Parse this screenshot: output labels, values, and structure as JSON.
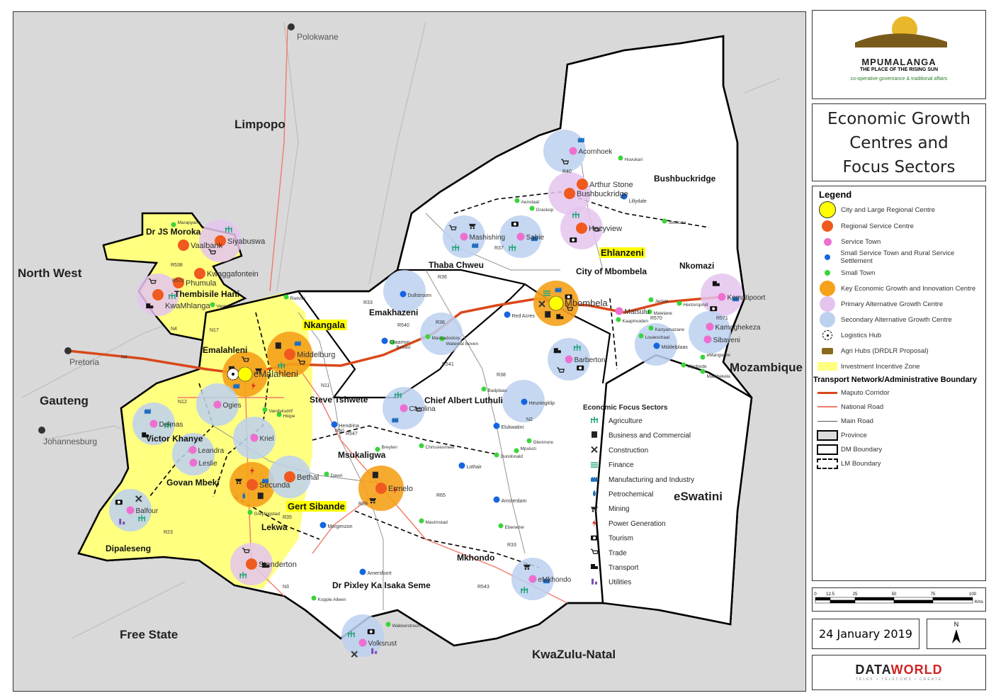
{
  "header": {
    "logo_text": "MPUMALANGA",
    "logo_tagline": "THE PLACE OF THE RISING SUN",
    "dept": "co-operative governance & traditional affairs",
    "title_lines": [
      "Economic Growth",
      "Centres and",
      "Focus Sectors"
    ]
  },
  "legend": {
    "heading": "Legend",
    "items": [
      {
        "label": "City and Large Regional Centre",
        "color": "#ffff00",
        "kind": "big"
      },
      {
        "label": "Regional Service Centre",
        "color": "#f05a1e",
        "kind": "mid"
      },
      {
        "label": "Service Town",
        "color": "#ee6fd0",
        "kind": "small"
      },
      {
        "label": "Small Service Town and Rural Service Settlement",
        "color": "#1565e0",
        "kind": "tiny"
      },
      {
        "label": "Small Town",
        "color": "#3ad43a",
        "kind": "tiny"
      },
      {
        "label": "Key Economic Growth and Innovation Centre",
        "color": "#f5a11a",
        "kind": "big"
      },
      {
        "label": "Primary Alternative Growth Centre",
        "color": "#e4c4ef",
        "kind": "big"
      },
      {
        "label": "Secondary Alternative Growth Centre",
        "color": "#bcd0f0",
        "kind": "big"
      },
      {
        "label": "Logistics Hub",
        "color": "#000000",
        "kind": "hub"
      },
      {
        "label": "Agri Hubs (DRDLR Proposal)",
        "color": "#8a6a1e",
        "kind": "agri"
      },
      {
        "label": "Investment Incentive Zone",
        "color": "#ffff80",
        "kind": "zone"
      }
    ],
    "transport_heading": "Transport Network/Administrative Boundary",
    "lines": [
      {
        "label": "Maputo Corridor",
        "color": "#d9481a",
        "kind": "thick"
      },
      {
        "label": "National Road",
        "color": "#f07a6a",
        "kind": "thin"
      },
      {
        "label": "Main Road",
        "color": "#555555",
        "kind": "hair"
      },
      {
        "label": "Province",
        "color": "#dddddd",
        "kind": "box"
      },
      {
        "label": "DM Boundary",
        "color": "#ffffff",
        "kind": "box"
      },
      {
        "label": "LM Boundary",
        "color": "#ffffff",
        "kind": "dash"
      }
    ]
  },
  "sectors": {
    "heading": "Economic Focus Sectors",
    "items": [
      {
        "label": "Agriculture",
        "icon": "agriculture-icon",
        "glyph": "ψ",
        "color": "#1fa37a"
      },
      {
        "label": "Business and Commercial",
        "icon": "business-icon",
        "glyph": "▥",
        "color": "#222"
      },
      {
        "label": "Construction",
        "icon": "construction-icon",
        "glyph": "✕",
        "color": "#333"
      },
      {
        "label": "Finance",
        "icon": "finance-icon",
        "glyph": "≋",
        "color": "#1fa37a"
      },
      {
        "label": "Manufacturing and Industry",
        "icon": "factory-icon",
        "glyph": "▙",
        "color": "#1f6fc0"
      },
      {
        "label": "Petrochemical",
        "icon": "drop-icon",
        "glyph": "●",
        "color": "#1f6fc0"
      },
      {
        "label": "Mining",
        "icon": "mining-cart-icon",
        "glyph": "◛",
        "color": "#222"
      },
      {
        "label": "Power Generation",
        "icon": "lightning-icon",
        "glyph": "ϟ",
        "color": "#e02020"
      },
      {
        "label": "Tourism",
        "icon": "camera-icon",
        "glyph": "◙",
        "color": "#111"
      },
      {
        "label": "Trade",
        "icon": "cart-icon",
        "glyph": "⊻",
        "color": "#222"
      },
      {
        "label": "Transport",
        "icon": "truck-icon",
        "glyph": "▆",
        "color": "#111"
      },
      {
        "label": "Utilities",
        "icon": "utilities-icon",
        "glyph": "▟",
        "color": "#7b4fb0"
      }
    ]
  },
  "scale_bar": {
    "ticks": [
      "0",
      "12.5",
      "25",
      "50",
      "75",
      "100"
    ],
    "unit": "Kms"
  },
  "date": "24 January 2019",
  "north_arrow": "N",
  "credit": {
    "part1": "DATA",
    "part2": "WORLD",
    "tagline": "TELEK • TELECOMS • CREATE"
  },
  "map": {
    "regions": [
      "Limpopo",
      "North West",
      "Gauteng",
      "Free State",
      "KwaZulu-Natal",
      "Mozambique",
      "eSwatini"
    ],
    "cities": [
      "Polokwane",
      "Pretoria",
      "Johannesburg"
    ],
    "districts": [
      "Nkangala",
      "Gert Sibande",
      "Ehlanzeni"
    ],
    "municipalities": [
      "Dr JS Moroka",
      "Thembisile Hani",
      "Emalahleni",
      "Steve Tshwete",
      "Victor Khanye",
      "Govan Mbeki",
      "Dipaleseng",
      "Lekwa",
      "Msukaligwa",
      "Chief Albert Luthuli",
      "Emakhazeni",
      "Thaba Chweu",
      "City of Mbombela",
      "Bushbuckridge",
      "Nkomazi",
      "Mkhondo",
      "Dr Pixley Ka Isaka Seme"
    ],
    "roads": [
      "N4",
      "N4",
      "N12",
      "N11",
      "N17",
      "N2",
      "N3",
      "R40",
      "R538",
      "R573",
      "R33",
      "R36",
      "R37",
      "R540",
      "R541",
      "R36",
      "R38",
      "R35",
      "R50",
      "R547",
      "R39",
      "R65",
      "R33",
      "R543",
      "R23",
      "R570",
      "R571"
    ],
    "places": [
      {
        "name": "eMalahleni",
        "type": "city"
      },
      {
        "name": "Mbombela",
        "type": "city"
      },
      {
        "name": "Siyabuswa",
        "type": "regional"
      },
      {
        "name": "Vaalbank",
        "type": "regional"
      },
      {
        "name": "Kwaggafontein",
        "type": "regional"
      },
      {
        "name": "Phumula",
        "type": "regional"
      },
      {
        "name": "KwaMhlanga",
        "type": "regional"
      },
      {
        "name": "Middelburg",
        "type": "regional"
      },
      {
        "name": "Secunda",
        "type": "regional"
      },
      {
        "name": "Bethal",
        "type": "regional"
      },
      {
        "name": "Ermelo",
        "type": "regional"
      },
      {
        "name": "Standerton",
        "type": "regional"
      },
      {
        "name": "Arthur Stone",
        "type": "regional"
      },
      {
        "name": "Bushbuckridge",
        "type": "regional"
      },
      {
        "name": "Hazyview",
        "type": "regional"
      },
      {
        "name": "Ogies",
        "type": "service"
      },
      {
        "name": "Kriel",
        "type": "service"
      },
      {
        "name": "Delmas",
        "type": "service"
      },
      {
        "name": "Leslie",
        "type": "service"
      },
      {
        "name": "Leandra",
        "type": "service"
      },
      {
        "name": "Balfour",
        "type": "service"
      },
      {
        "name": "Carolina",
        "type": "service"
      },
      {
        "name": "Mashishing",
        "type": "service"
      },
      {
        "name": "Sabie",
        "type": "service"
      },
      {
        "name": "Acornhoek",
        "type": "service"
      },
      {
        "name": "Barberton",
        "type": "service"
      },
      {
        "name": "Matsulu",
        "type": "service"
      },
      {
        "name": "Kamaghekeza",
        "type": "service"
      },
      {
        "name": "Sibayeni",
        "type": "service"
      },
      {
        "name": "eMkhondo",
        "type": "service"
      },
      {
        "name": "Volksrust",
        "type": "service"
      },
      {
        "name": "Komatipoort",
        "type": "service"
      },
      {
        "name": "Dullstroom",
        "type": "rural"
      },
      {
        "name": "Red Acres",
        "type": "rural"
      },
      {
        "name": "Lillydale",
        "type": "rural"
      },
      {
        "name": "Middelplaas",
        "type": "rural"
      },
      {
        "name": "Hendrina",
        "type": "rural"
      },
      {
        "name": "Morgenzon",
        "type": "rural"
      },
      {
        "name": "Amersfoort",
        "type": "rural"
      },
      {
        "name": "Lothair",
        "type": "rural"
      },
      {
        "name": "Amsterdam",
        "type": "rural"
      },
      {
        "name": "Heuningklip",
        "type": "rural"
      },
      {
        "name": "Elukwatini",
        "type": "rural"
      },
      {
        "name": "Cliaamyn",
        "type": "rural"
      },
      {
        "name": "Marapyane",
        "type": "small"
      },
      {
        "name": "Verena",
        "type": "small"
      },
      {
        "name": "Rietvlei",
        "type": "small"
      },
      {
        "name": "Vandyksdrif",
        "type": "small"
      },
      {
        "name": "Hlope",
        "type": "small"
      },
      {
        "name": "Belfast",
        "type": "small"
      },
      {
        "name": "Machadodorp",
        "type": "small"
      },
      {
        "name": "Waterval Boven",
        "type": "small"
      },
      {
        "name": "Aenstaat",
        "type": "small"
      },
      {
        "name": "Graskop",
        "type": "small"
      },
      {
        "name": "Huvukari",
        "type": "small"
      },
      {
        "name": "Skukuza",
        "type": "small"
      },
      {
        "name": "Kaapmuiden",
        "type": "small"
      },
      {
        "name": "Malelane",
        "type": "small"
      },
      {
        "name": "Hectorspruit",
        "type": "small"
      },
      {
        "name": "Kanyamazane",
        "type": "small"
      },
      {
        "name": "Louieschaal",
        "type": "small"
      },
      {
        "name": "eMangweni",
        "type": "small"
      },
      {
        "name": "Mgobode",
        "type": "small"
      },
      {
        "name": "Madibekela",
        "type": "small"
      },
      {
        "name": "Badplaas",
        "type": "small"
      },
      {
        "name": "Chrissiesmeer",
        "type": "small"
      },
      {
        "name": "Breyten",
        "type": "small"
      },
      {
        "name": "Davel",
        "type": "small"
      },
      {
        "name": "Dundonald",
        "type": "small"
      },
      {
        "name": "Glenmore",
        "type": "small"
      },
      {
        "name": "Mpuluzi",
        "type": "small"
      },
      {
        "name": "Mavimstad",
        "type": "small"
      },
      {
        "name": "Ebenezer",
        "type": "small"
      },
      {
        "name": "Greylingstad",
        "type": "small"
      },
      {
        "name": "Koppie Alleen",
        "type": "small"
      },
      {
        "name": "Wakkerstroom",
        "type": "small"
      },
      {
        "name": "Jedala",
        "type": "small"
      }
    ]
  }
}
